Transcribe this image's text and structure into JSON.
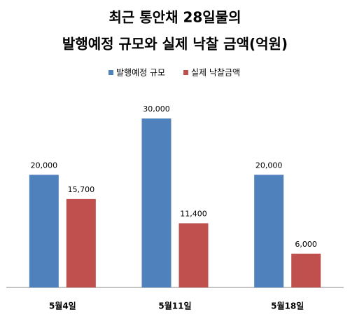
{
  "chart_data": {
    "type": "bar",
    "title": [
      "최근 통안채 28일물의",
      "발행예정 규모와 실제 낙찰 금액(억원)"
    ],
    "categories": [
      "5월4일",
      "5월11일",
      "5월18일"
    ],
    "series": [
      {
        "name": "발행예정 규모",
        "color": "#4f81bd",
        "values": [
          20000,
          30000,
          20000
        ],
        "value_labels": [
          "20,000",
          "30,000",
          "20,000"
        ]
      },
      {
        "name": "실제 낙찰금액",
        "color": "#c0504d",
        "values": [
          15700,
          11400,
          6000
        ],
        "value_labels": [
          "15,700",
          "11,400",
          "6,000"
        ]
      }
    ],
    "ylim": [
      0,
      30000
    ]
  }
}
